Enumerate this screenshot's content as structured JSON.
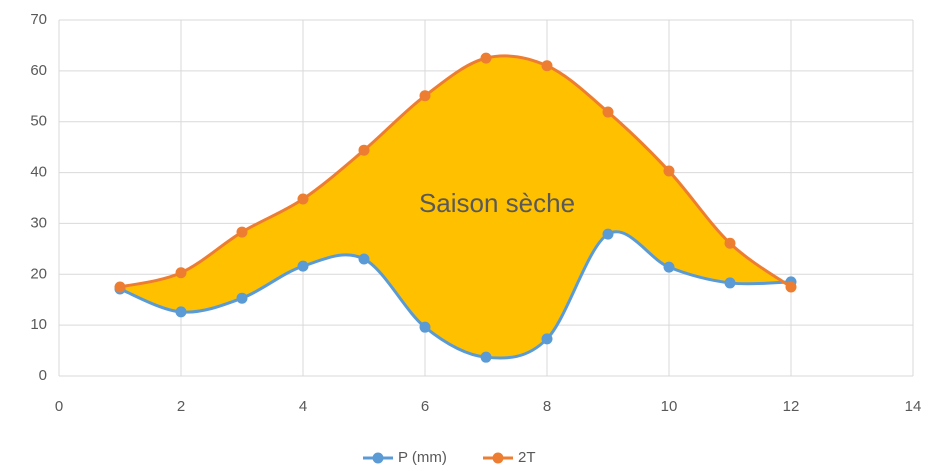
{
  "chart_data": {
    "type": "scatter",
    "annotation": "Saison sèche",
    "x": [
      1,
      2,
      3,
      4,
      5,
      6,
      7,
      8,
      9,
      10,
      11,
      12
    ],
    "series": [
      {
        "name": "P (mm)",
        "color": "#5b9bd5",
        "values": [
          17.1,
          12.6,
          15.3,
          21.6,
          23,
          9.6,
          3.7,
          7.3,
          27.9,
          21.4,
          18.3,
          18.5
        ]
      },
      {
        "name": "2T",
        "color": "#ed7d31",
        "values": [
          17.5,
          20.3,
          28.3,
          34.8,
          44.4,
          55.1,
          62.5,
          61,
          51.9,
          40.3,
          26.1,
          17.5
        ]
      }
    ],
    "fill_color": "#ffc000",
    "smooth": true,
    "xlim": [
      0,
      14
    ],
    "xticks": [
      0,
      2,
      4,
      6,
      8,
      10,
      12,
      14
    ],
    "ylim": [
      0,
      70
    ],
    "yticks": [
      0,
      10,
      20,
      30,
      40,
      50,
      60,
      70
    ],
    "grid": true,
    "legend": "bottom"
  }
}
